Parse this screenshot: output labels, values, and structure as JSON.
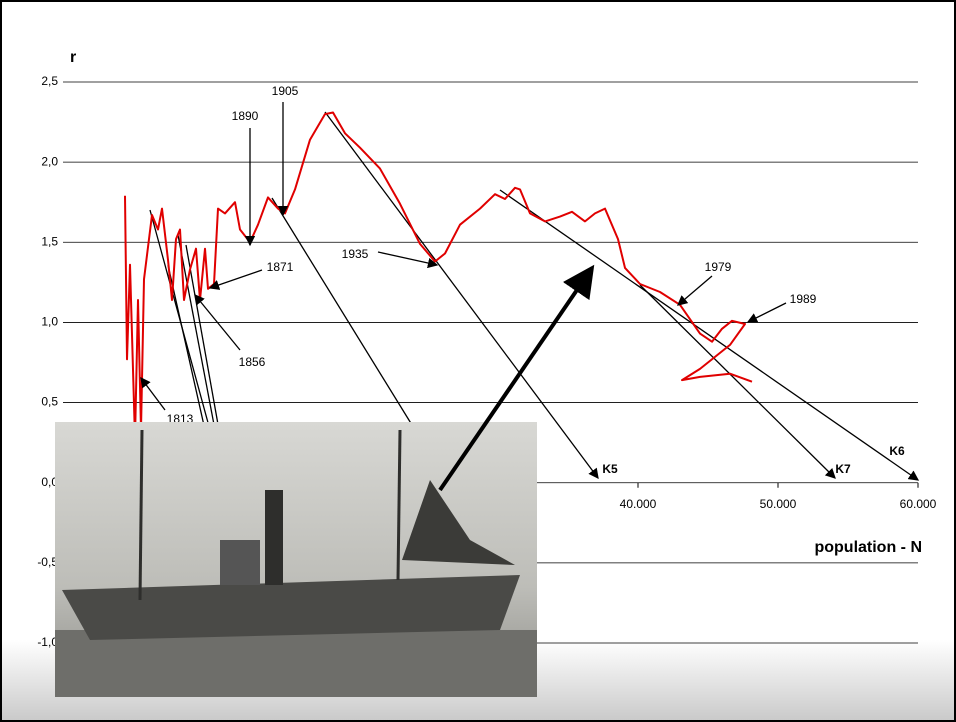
{
  "chart_data": {
    "type": "line",
    "y_label": "r",
    "x_label": "population - N",
    "xlim": [
      0,
      60000
    ],
    "ylim": [
      -1,
      2.5
    ],
    "xticks": [
      {
        "value": 40000,
        "label": "40.000"
      },
      {
        "value": 50000,
        "label": "50.000"
      },
      {
        "value": 60000,
        "label": "60.000"
      }
    ],
    "yticks": [
      {
        "value": -1,
        "label": "-1,0"
      },
      {
        "value": -0.5,
        "label": "-0,5"
      },
      {
        "value": 0,
        "label": "0,0"
      },
      {
        "value": 0.5,
        "label": "0,5"
      },
      {
        "value": 1,
        "label": "1,0"
      },
      {
        "value": 1.5,
        "label": "1,5"
      },
      {
        "value": 2,
        "label": "2,0"
      },
      {
        "value": 2.5,
        "label": "2,5"
      }
    ],
    "grid": true,
    "x": [
      3357,
      3500,
      3714,
      4071,
      4286,
      4500,
      4714,
      5286,
      5714,
      6000,
      6429,
      6714,
      7000,
      7286,
      7571,
      8000,
      8429,
      8714,
      9071,
      9286,
      9714,
      10000,
      10500,
      11214,
      11571,
      12286,
      12857,
      13571,
      14286,
      14786,
      15500,
      16571,
      17643,
      18214,
      19071,
      20143,
      21571,
      23000,
      24429,
      25500,
      26214,
      27286,
      28714,
      29786,
      30500,
      31214,
      31571,
      32286,
      33357,
      34429,
      35286,
      36214,
      36929,
      37643,
      38571,
      39071,
      40143,
      41571,
      43000,
      43714,
      44429,
      45286,
      46000,
      46714,
      47643,
      46571,
      44429,
      43143,
      44429,
      46571,
      48143
    ],
    "series": [
      {
        "color": "#e00000",
        "values": [
          1.79,
          0.77,
          1.36,
          0.27,
          1.14,
          0.33,
          1.27,
          1.67,
          1.58,
          1.71,
          1.39,
          1.14,
          1.52,
          1.58,
          1.14,
          1.33,
          1.46,
          1.14,
          1.46,
          1.21,
          1.24,
          1.71,
          1.68,
          1.75,
          1.58,
          1.5,
          1.61,
          1.78,
          1.71,
          1.68,
          1.83,
          2.14,
          2.3,
          2.31,
          2.18,
          2.09,
          1.96,
          1.74,
          1.49,
          1.38,
          1.43,
          1.61,
          1.71,
          1.8,
          1.77,
          1.84,
          1.83,
          1.68,
          1.63,
          1.66,
          1.69,
          1.63,
          1.68,
          1.71,
          1.52,
          1.34,
          1.24,
          1.19,
          1.11,
          1.02,
          0.93,
          0.88,
          0.96,
          1.01,
          0.99,
          0.86,
          0.71,
          0.64,
          0.66,
          0.68,
          0.63
        ]
      }
    ],
    "annotations": [
      "1813",
      "1856",
      "1871",
      "1890",
      "1905",
      "1935",
      "1979",
      "1989",
      "K5",
      "K6",
      "K7"
    ]
  }
}
